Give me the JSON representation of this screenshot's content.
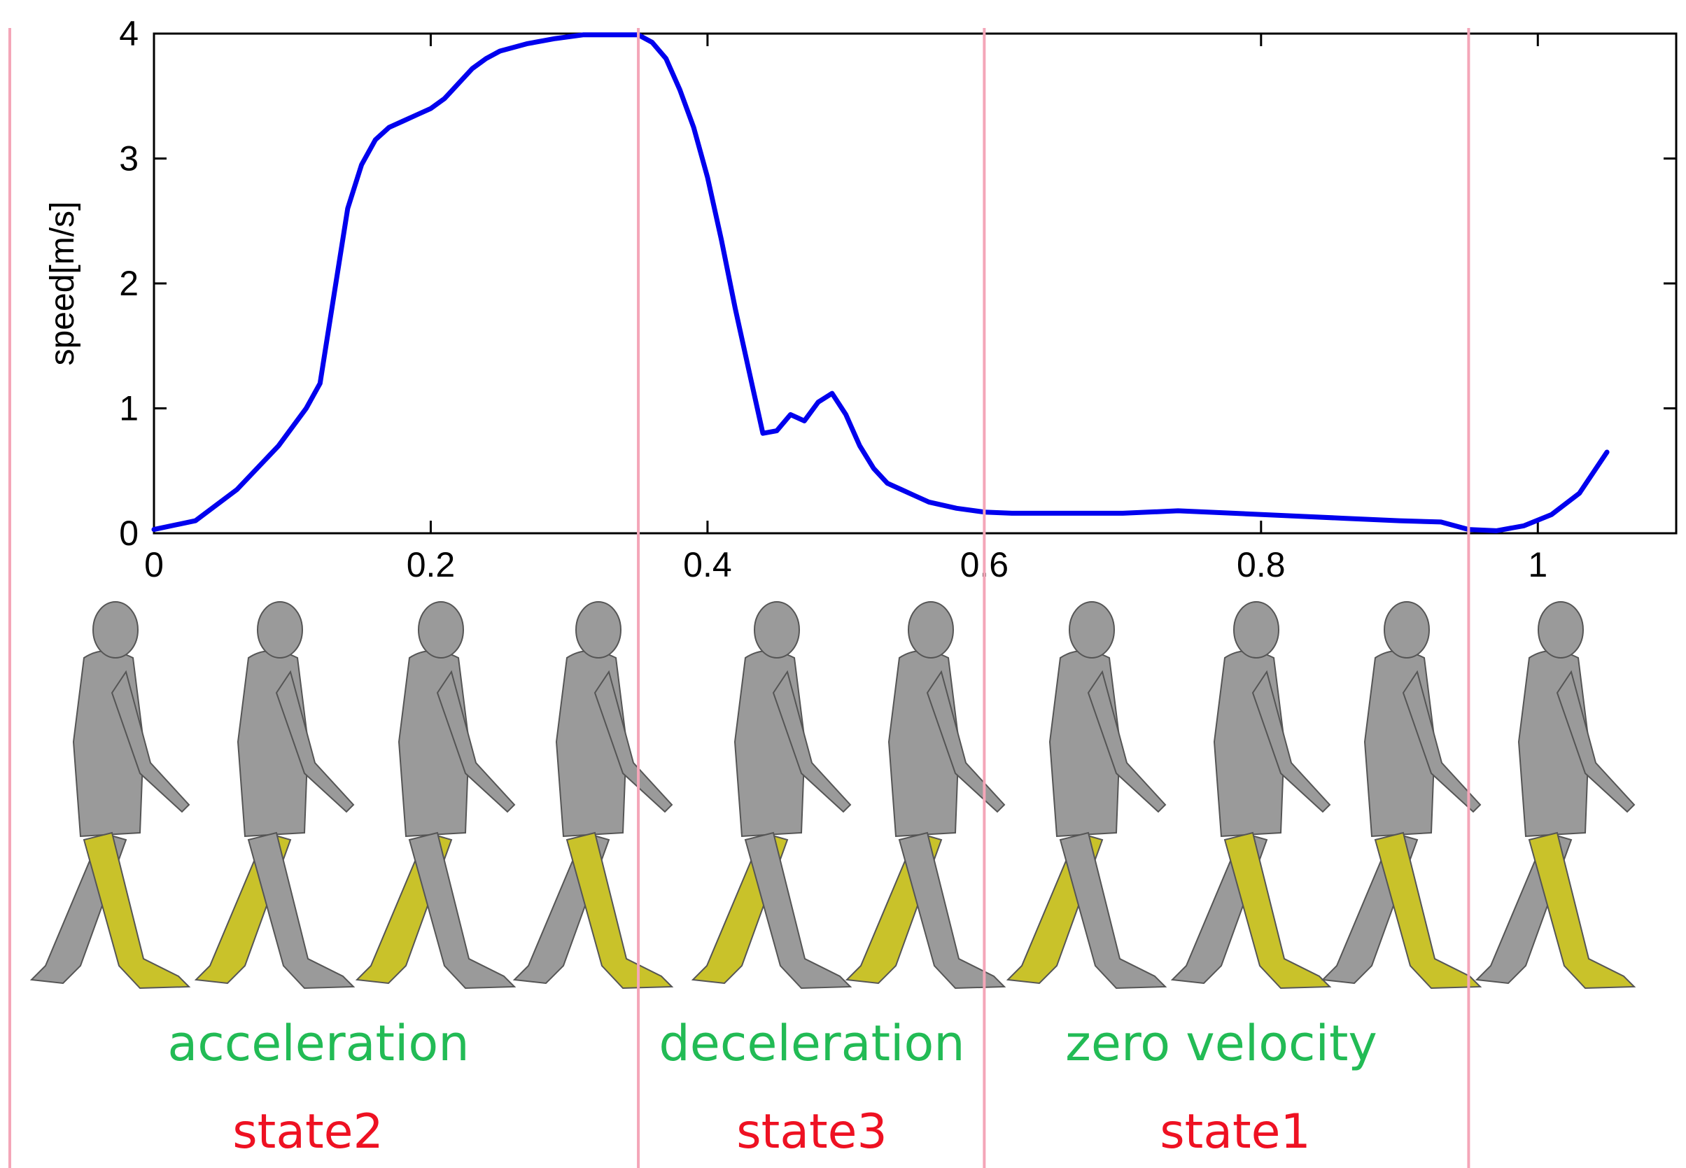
{
  "chart_data": {
    "type": "line",
    "ylabel": "speed[m/s]",
    "xlabel": "",
    "xlim": [
      0,
      1.1
    ],
    "ylim": [
      0,
      4
    ],
    "xticks": [
      "0",
      "0.2",
      "0.4",
      "0.6",
      "0.8",
      "1"
    ],
    "yticks": [
      "0",
      "1",
      "2",
      "3",
      "4"
    ],
    "grid": false,
    "series": [
      {
        "color": "#0000ee",
        "x": [
          0.0,
          0.03,
          0.06,
          0.09,
          0.11,
          0.12,
          0.13,
          0.14,
          0.15,
          0.16,
          0.17,
          0.18,
          0.19,
          0.2,
          0.21,
          0.22,
          0.23,
          0.24,
          0.25,
          0.27,
          0.29,
          0.31,
          0.33,
          0.35,
          0.36,
          0.37,
          0.38,
          0.39,
          0.4,
          0.41,
          0.42,
          0.43,
          0.44,
          0.45,
          0.46,
          0.47,
          0.48,
          0.49,
          0.5,
          0.51,
          0.52,
          0.53,
          0.54,
          0.55,
          0.56,
          0.58,
          0.6,
          0.62,
          0.66,
          0.7,
          0.74,
          0.78,
          0.82,
          0.86,
          0.9,
          0.93,
          0.95,
          0.97,
          0.99,
          1.01,
          1.03,
          1.05
        ],
        "y": [
          0.03,
          0.1,
          0.35,
          0.7,
          1.0,
          1.2,
          1.9,
          2.6,
          2.95,
          3.15,
          3.25,
          3.3,
          3.35,
          3.4,
          3.48,
          3.6,
          3.72,
          3.8,
          3.86,
          3.92,
          3.96,
          3.99,
          3.99,
          3.99,
          3.93,
          3.8,
          3.55,
          3.25,
          2.85,
          2.35,
          1.8,
          1.3,
          0.8,
          0.82,
          0.95,
          0.9,
          1.05,
          1.12,
          0.95,
          0.7,
          0.52,
          0.4,
          0.35,
          0.3,
          0.25,
          0.2,
          0.17,
          0.16,
          0.16,
          0.16,
          0.18,
          0.16,
          0.14,
          0.12,
          0.1,
          0.09,
          0.03,
          0.02,
          0.06,
          0.15,
          0.32,
          0.65
        ]
      }
    ],
    "dividers_x": [
      0.35,
      0.6,
      0.95
    ]
  },
  "colors": {
    "line": "#0000ee",
    "divider": "#f4a6b8",
    "phase_label": "#22bb55",
    "state_label": "#ee1122",
    "leg_highlight": "#c9c22a",
    "body": "#9a9a9a"
  },
  "phases": [
    {
      "label": "acceleration",
      "state": "state2"
    },
    {
      "label": "deceleration",
      "state": "state3"
    },
    {
      "label": "zero velocity",
      "state": "state1"
    }
  ],
  "figures": [
    {
      "lead": "right"
    },
    {
      "lead": "left"
    },
    {
      "lead": "left"
    },
    {
      "lead": "right"
    },
    {
      "lead": "left"
    },
    {
      "lead": "left"
    },
    {
      "lead": "left"
    },
    {
      "lead": "right"
    },
    {
      "lead": "right"
    },
    {
      "lead": "right"
    }
  ]
}
